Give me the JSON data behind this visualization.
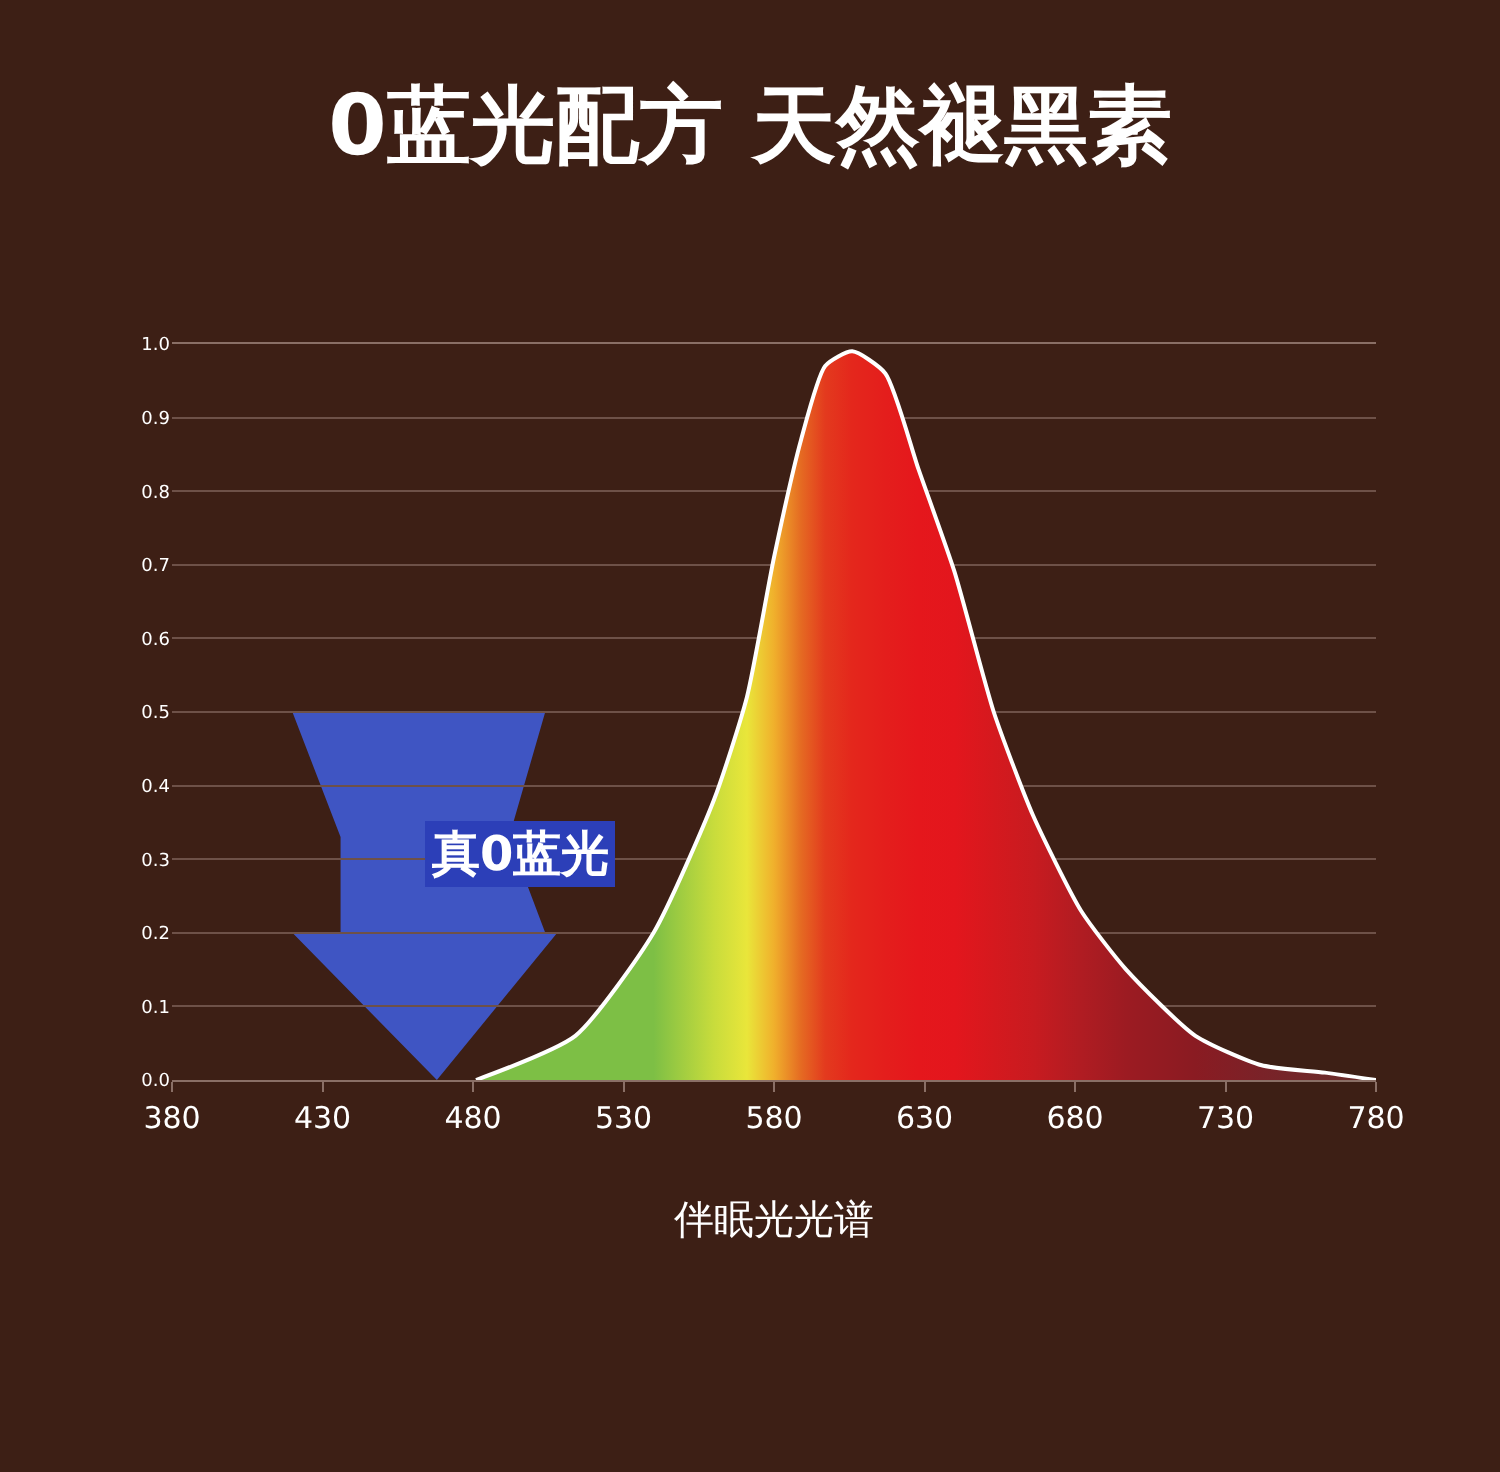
{
  "chart_data": {
    "type": "area",
    "title": "0蓝光配方 天然褪黑素",
    "xlabel": "伴眠光光谱",
    "x": [
      481,
      514,
      540,
      560,
      571,
      580,
      589,
      597,
      606,
      617,
      628,
      640,
      653,
      666,
      682,
      697,
      720,
      742,
      763,
      780
    ],
    "series": [
      {
        "color": "#ffffff",
        "values": [
          0,
          0.06,
          0.2,
          0.38,
          0.52,
          0.71,
          0.87,
          0.97,
          0.99,
          0.96,
          0.83,
          0.69,
          0.5,
          0.36,
          0.23,
          0.15,
          0.06,
          0.02,
          0.01,
          0
        ],
        "colors": [
          "#7dbf45",
          "#7dbf45",
          "#7dbf45",
          "#c8dc3c",
          "#e9e63a",
          "#f0b02c",
          "#e56a22",
          "#e33a1e",
          "#e4271c",
          "#e41e1c",
          "#e5171c",
          "#e3161d",
          "#d5191e",
          "#c81b20",
          "#b01c22",
          "#9c1b22",
          "#8a1b22",
          "#7a2228",
          "#6e2a2a",
          "#6a2e2c"
        ]
      }
    ],
    "xlim": [
      380,
      780
    ],
    "xticks": [
      380,
      430,
      480,
      530,
      580,
      630,
      680,
      730,
      780
    ],
    "ylim": [
      0,
      1.0
    ],
    "yticks": [
      {
        "value": 0,
        "label": "0.0"
      },
      {
        "value": 0.1,
        "label": "0.1"
      },
      {
        "value": 0.2,
        "label": "0.2"
      },
      {
        "value": 0.3,
        "label": "0.3"
      },
      {
        "value": 0.4,
        "label": "0.4"
      },
      {
        "value": 0.5,
        "label": "0.5"
      },
      {
        "value": 0.6,
        "label": "0.6"
      },
      {
        "value": 0.7,
        "label": "0.7"
      },
      {
        "value": 0.8,
        "label": "0.8"
      },
      {
        "value": 0.9,
        "label": "0.9"
      },
      {
        "value": 1.0,
        "label": "1.0"
      }
    ],
    "grid": "y",
    "annotations": [
      "真0蓝光"
    ]
  }
}
